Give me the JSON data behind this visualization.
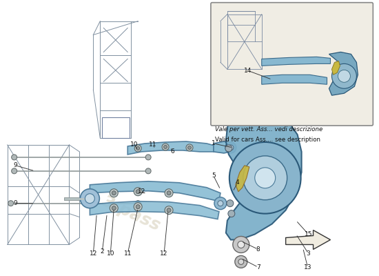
{
  "bg_color": "#ffffff",
  "main_bg": "#f8f6f2",
  "arm_color": "#8bbdd4",
  "arm_edge": "#4a7a9a",
  "knuckle_color": "#7aaec8",
  "knuckle_edge": "#2a5878",
  "frame_color": "#c8d0d8",
  "frame_edge": "#6a7a88",
  "hub_color": "#a8c8dc",
  "hub_inner": "#d8e8f0",
  "yellow_color": "#c8b840",
  "line_color": "#333333",
  "text_color": "#111111",
  "inset_bg": "#f0ede4",
  "inset_edge": "#888888",
  "inset_text1": "Vale per vett. Ass... vedi descrizione",
  "inset_text2": "Valid for cars Ass.... see description",
  "watermark_color": "#d0c8b0",
  "watermark_alpha": 0.5
}
